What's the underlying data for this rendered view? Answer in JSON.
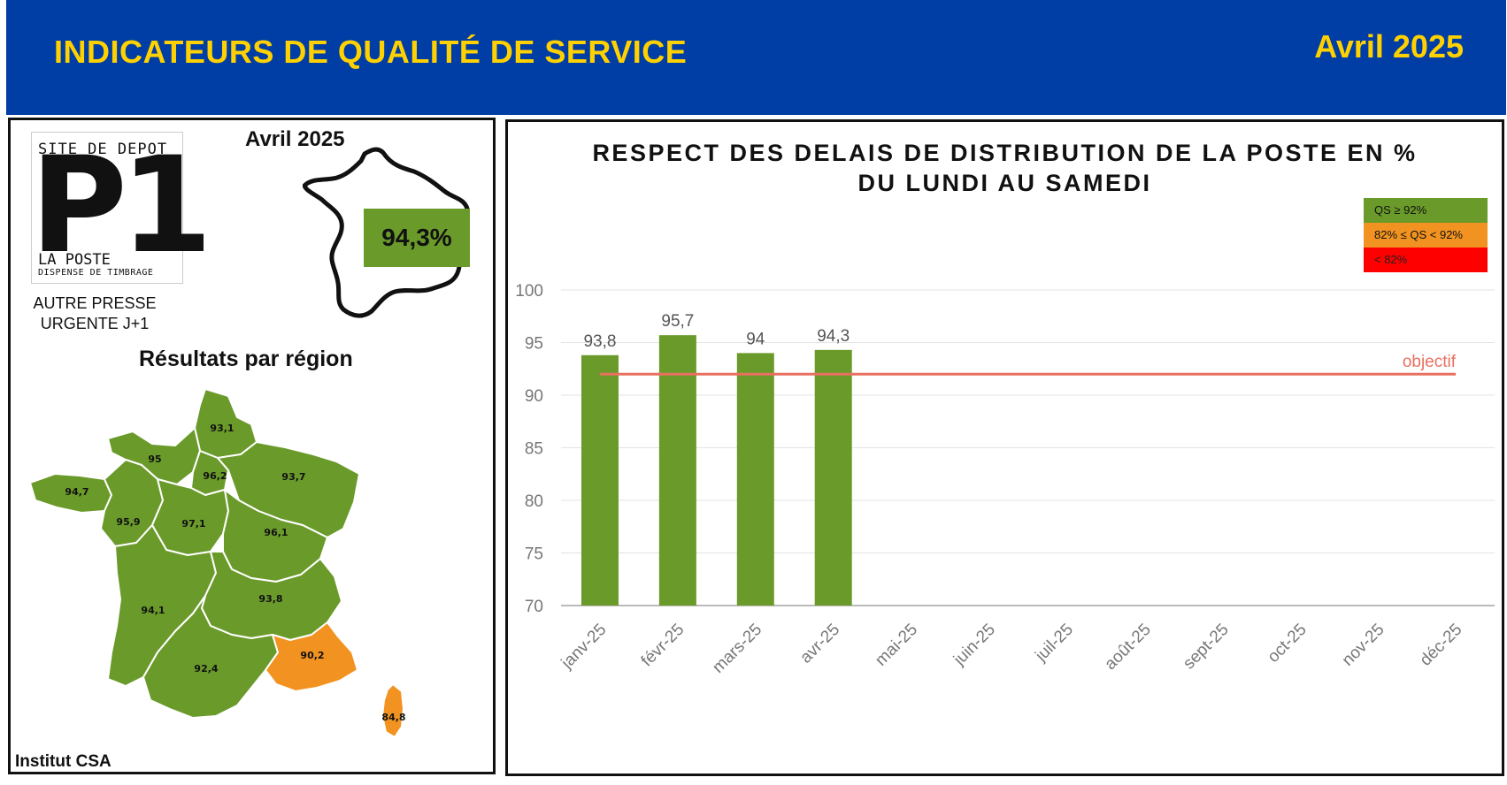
{
  "header": {
    "title": "INDICATEURS DE QUALITÉ DE SERVICE",
    "date": "Avril 2025"
  },
  "colors": {
    "header_bg": "#003da5",
    "header_text": "#ffd100",
    "ok": "#6a9a2a",
    "warn": "#f29321",
    "bad": "#ff0000",
    "objective_line": "#e87060"
  },
  "left": {
    "logo": {
      "top_text": "SITE DE DEPOT",
      "big_text": "P1",
      "brand": "LA POSTE",
      "sub": "DISPENSE DE TIMBRAGE"
    },
    "service_line1": "AUTRE PRESSE",
    "service_line2": "URGENTE J+1",
    "date": "Avril 2025",
    "national_value": "94,3%",
    "regions_title": "Résultats par région",
    "regions": [
      {
        "value": "93,1",
        "status": "ok"
      },
      {
        "value": "95",
        "status": "ok"
      },
      {
        "value": "96,2",
        "status": "ok"
      },
      {
        "value": "93,7",
        "status": "ok"
      },
      {
        "value": "94,7",
        "status": "ok"
      },
      {
        "value": "95,9",
        "status": "ok"
      },
      {
        "value": "97,1",
        "status": "ok"
      },
      {
        "value": "96,1",
        "status": "ok"
      },
      {
        "value": "94,1",
        "status": "ok"
      },
      {
        "value": "93,8",
        "status": "ok"
      },
      {
        "value": "92,4",
        "status": "ok"
      },
      {
        "value": "90,2",
        "status": "warn"
      },
      {
        "value": "84,8",
        "status": "warn"
      }
    ],
    "source": "Institut CSA"
  },
  "chart_data": {
    "type": "bar",
    "title_line1": "RESPECT DES DELAIS DE DISTRIBUTION DE LA POSTE EN %",
    "title_line2": "DU LUNDI AU SAMEDI",
    "categories": [
      "janv-25",
      "févr-25",
      "mars-25",
      "avr-25",
      "mai-25",
      "juin-25",
      "juil-25",
      "août-25",
      "sept-25",
      "oct-25",
      "nov-25",
      "déc-25"
    ],
    "values": [
      93.8,
      95.7,
      94,
      94.3,
      null,
      null,
      null,
      null,
      null,
      null,
      null,
      null
    ],
    "value_labels": [
      "93,8",
      "95,7",
      "94",
      "94,3",
      "",
      "",
      "",
      "",
      "",
      "",
      "",
      ""
    ],
    "ylim": [
      70,
      100
    ],
    "yticks": [
      70,
      75,
      80,
      85,
      90,
      95,
      100
    ],
    "objective": {
      "value": 92,
      "label": "objectif"
    },
    "legend": [
      {
        "label": "QS ≥ 92%",
        "color": "#6a9a2a",
        "text_color": "#111"
      },
      {
        "label": "82% ≤ QS < 92%",
        "color": "#f29321",
        "text_color": "#111"
      },
      {
        "label": "< 82%",
        "color": "#ff0000",
        "text_color": "#222"
      }
    ],
    "grid": true
  }
}
